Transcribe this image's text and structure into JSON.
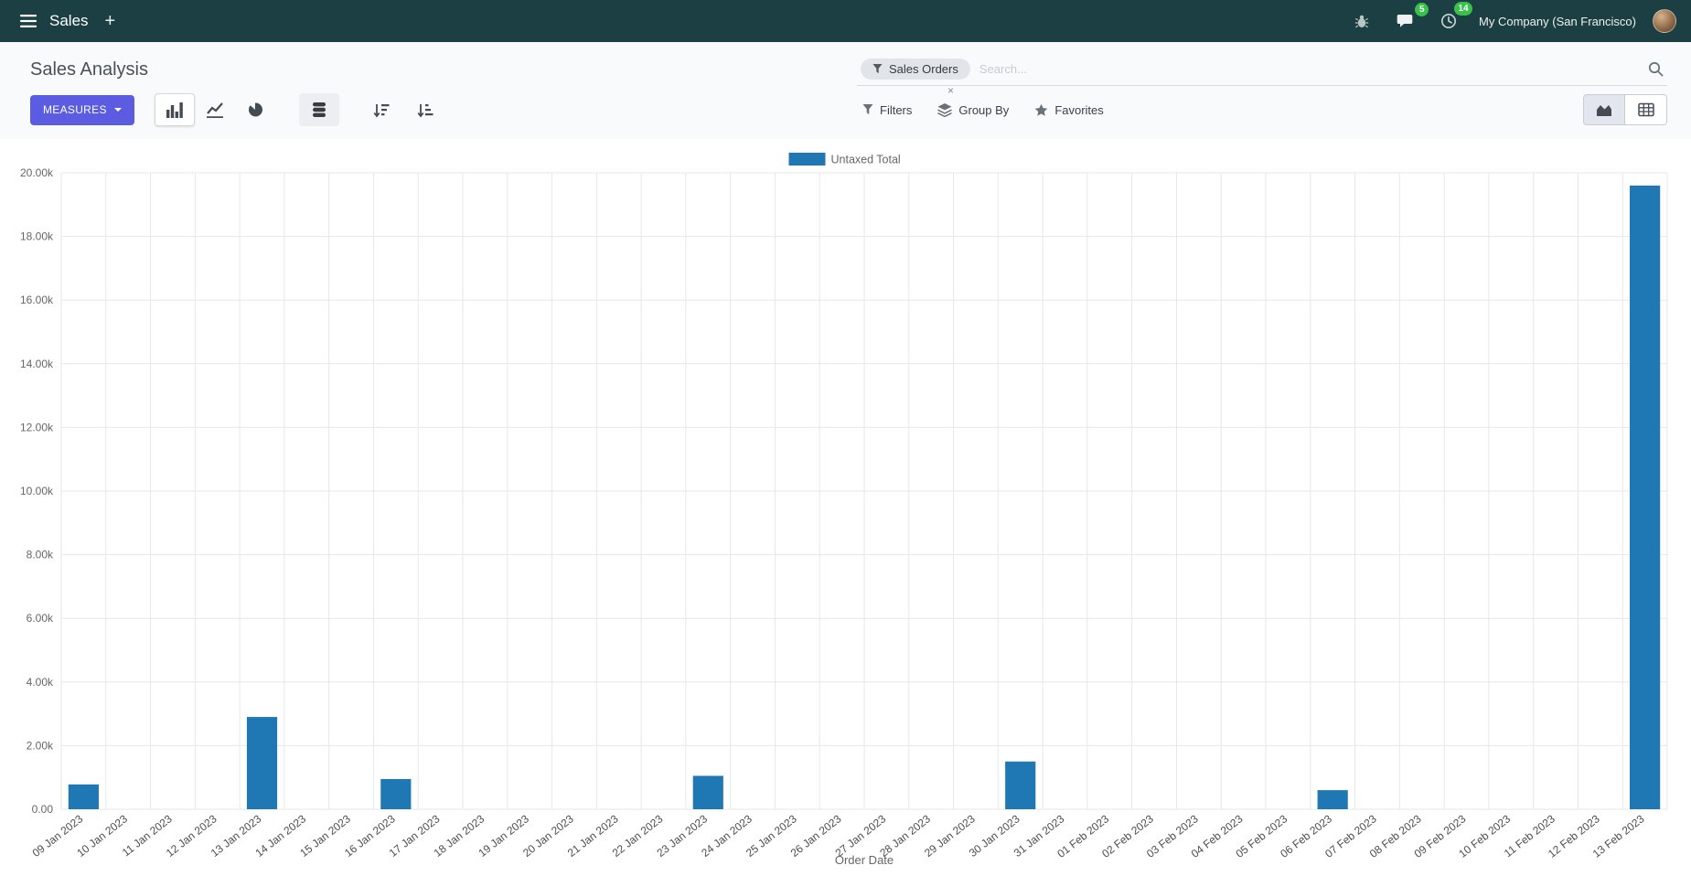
{
  "icons": {
    "plus": "+"
  },
  "colors": {
    "navbar_bg": "#1b3f42",
    "badge": "#38c24a",
    "primary_button": "#5b5ce2",
    "bar": "#1f77b4"
  },
  "navbar": {
    "app_name": "Sales",
    "messages_badge": "5",
    "activities_badge": "14",
    "company": "My Company (San Francisco)"
  },
  "control_panel": {
    "title": "Sales Analysis",
    "search": {
      "facet": "Sales Orders",
      "remove_label": "×",
      "placeholder": "Search..."
    },
    "measures_label": "MEASURES",
    "filters_label": "Filters",
    "group_by_label": "Group By",
    "favorites_label": "Favorites"
  },
  "chart_data": {
    "type": "bar",
    "title": "",
    "xlabel": "Order Date",
    "ylabel": "",
    "ylim": [
      0,
      20000
    ],
    "ytick_step": 2000,
    "ytick_labels": [
      "0.00",
      "2.00k",
      "4.00k",
      "6.00k",
      "8.00k",
      "10.00k",
      "12.00k",
      "14.00k",
      "16.00k",
      "18.00k",
      "20.00k"
    ],
    "grid": true,
    "legend_position": "top",
    "categories": [
      "09 Jan 2023",
      "10 Jan 2023",
      "11 Jan 2023",
      "12 Jan 2023",
      "13 Jan 2023",
      "14 Jan 2023",
      "15 Jan 2023",
      "16 Jan 2023",
      "17 Jan 2023",
      "18 Jan 2023",
      "19 Jan 2023",
      "20 Jan 2023",
      "21 Jan 2023",
      "22 Jan 2023",
      "23 Jan 2023",
      "24 Jan 2023",
      "25 Jan 2023",
      "26 Jan 2023",
      "27 Jan 2023",
      "28 Jan 2023",
      "29 Jan 2023",
      "30 Jan 2023",
      "31 Jan 2023",
      "01 Feb 2023",
      "02 Feb 2023",
      "03 Feb 2023",
      "04 Feb 2023",
      "05 Feb 2023",
      "06 Feb 2023",
      "07 Feb 2023",
      "08 Feb 2023",
      "09 Feb 2023",
      "10 Feb 2023",
      "11 Feb 2023",
      "12 Feb 2023",
      "13 Feb 2023"
    ],
    "series": [
      {
        "name": "Untaxed Total",
        "color": "#1f77b4",
        "values": [
          780,
          0,
          0,
          0,
          2900,
          0,
          0,
          950,
          0,
          0,
          0,
          0,
          0,
          0,
          1050,
          0,
          0,
          0,
          0,
          0,
          0,
          1500,
          0,
          0,
          0,
          0,
          0,
          0,
          600,
          0,
          0,
          0,
          0,
          0,
          0,
          19600
        ]
      }
    ]
  }
}
